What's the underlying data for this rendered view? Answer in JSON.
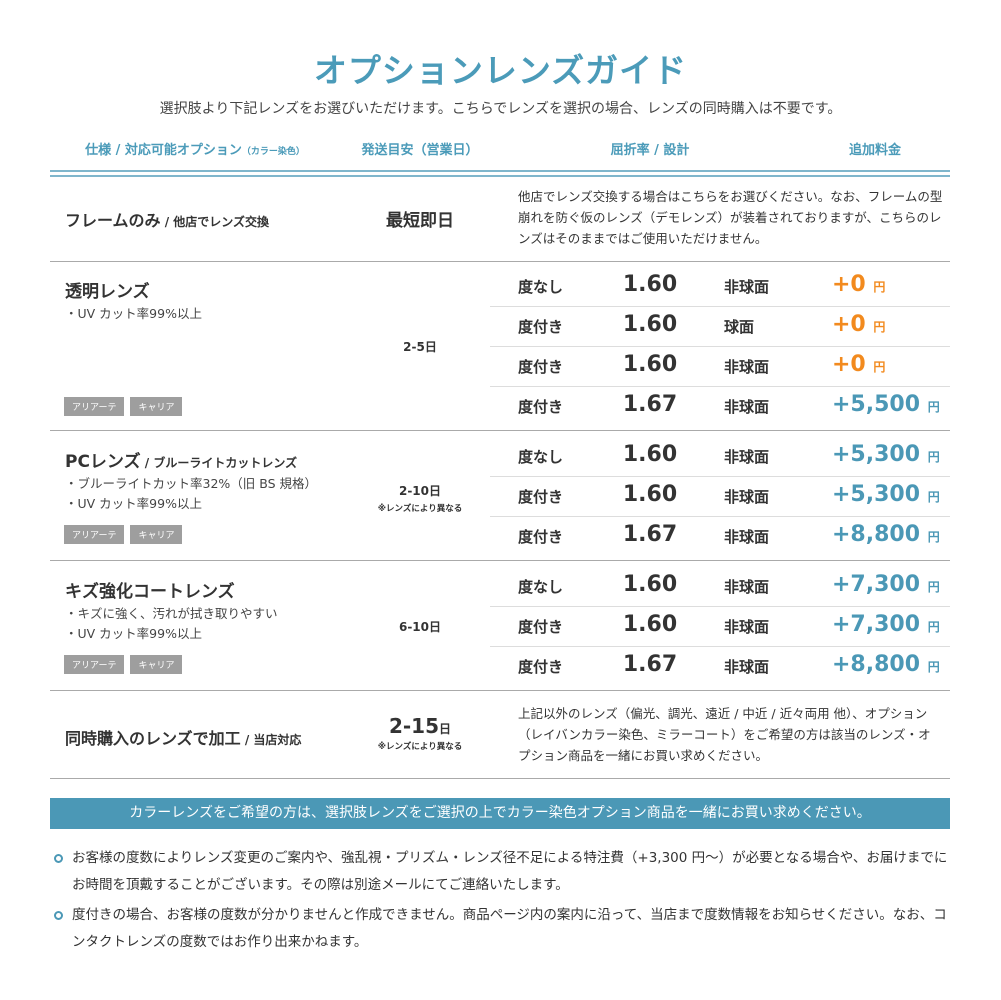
{
  "title": "オプションレンズガイド",
  "subtitle": "選択肢より下記レンズをお選びいただけます。こちらでレンズを選択の場合、レンズの同時購入は不要です。",
  "headers": {
    "spec": "仕様 / 対応可能オプション",
    "spec_small": "（カラー染色）",
    "shipping": "発送目安（営業日）",
    "index": "屈折率 / 設計",
    "price": "追加料金"
  },
  "colors": {
    "accent": "#4b9bb9",
    "orange": "#f28a1e",
    "price_blue": "#4b98b6",
    "tag": "#9e9e9e"
  },
  "frame_only": {
    "title": "フレームのみ",
    "title_sub": " / 他店でレンズ交換",
    "days": "最短即日",
    "desc": "他店でレンズ交換する場合はこちらをお選びください。なお、フレームの型崩れを防ぐ仮のレンズ（デモレンズ）が装着されておりますが、こちらのレンズはそのままではご使用いただけません。"
  },
  "sections": [
    {
      "title": "透明レンズ",
      "title_sub": "",
      "bullets": [
        "・UV カット率99%以上"
      ],
      "tags": [
        "アリアーテ",
        "キャリア"
      ],
      "days": "2-5",
      "days_unit": "日",
      "days_note": "",
      "rows": [
        {
          "label": "度なし",
          "index": "1.60",
          "design": "非球面",
          "price": "+0",
          "unit": "円",
          "color": "orange"
        },
        {
          "label": "度付き",
          "index": "1.60",
          "design": "球面",
          "price": "+0",
          "unit": "円",
          "color": "orange"
        },
        {
          "label": "度付き",
          "index": "1.60",
          "design": "非球面",
          "price": "+0",
          "unit": "円",
          "color": "orange"
        },
        {
          "label": "度付き",
          "index": "1.67",
          "design": "非球面",
          "price": "+5,500",
          "unit": "円",
          "color": "blue"
        }
      ]
    },
    {
      "title": "PCレンズ",
      "title_sub": " / ブルーライトカットレンズ",
      "bullets": [
        "・ブルーライトカット率32%（旧 BS 規格）",
        "・UV カット率99%以上"
      ],
      "tags": [
        "アリアーテ",
        "キャリア"
      ],
      "days": "2-10",
      "days_unit": "日",
      "days_note": "※レンズにより異なる",
      "rows": [
        {
          "label": "度なし",
          "index": "1.60",
          "design": "非球面",
          "price": "+5,300",
          "unit": "円",
          "color": "blue"
        },
        {
          "label": "度付き",
          "index": "1.60",
          "design": "非球面",
          "price": "+5,300",
          "unit": "円",
          "color": "blue"
        },
        {
          "label": "度付き",
          "index": "1.67",
          "design": "非球面",
          "price": "+8,800",
          "unit": "円",
          "color": "blue"
        }
      ]
    },
    {
      "title": "キズ強化コートレンズ",
      "title_sub": "",
      "bullets": [
        "・キズに強く、汚れが拭き取りやすい",
        "・UV カット率99%以上"
      ],
      "tags": [
        "アリアーテ",
        "キャリア"
      ],
      "days": "6-10",
      "days_unit": "日",
      "days_note": "",
      "rows": [
        {
          "label": "度なし",
          "index": "1.60",
          "design": "非球面",
          "price": "+7,300",
          "unit": "円",
          "color": "blue"
        },
        {
          "label": "度付き",
          "index": "1.60",
          "design": "非球面",
          "price": "+7,300",
          "unit": "円",
          "color": "blue"
        },
        {
          "label": "度付き",
          "index": "1.67",
          "design": "非球面",
          "price": "+8,800",
          "unit": "円",
          "color": "blue"
        }
      ]
    }
  ],
  "processing": {
    "title": "同時購入のレンズで加工",
    "title_sub": " / 当店対応",
    "days": "2-15",
    "days_unit": "日",
    "days_note": "※レンズにより異なる",
    "desc": "上記以外のレンズ（偏光、調光、遠近 / 中近 / 近々両用 他）、オプション（レイバンカラー染色、ミラーコート）をご希望の方は該当のレンズ・オプション商品を一緒にお買い求めください。"
  },
  "banner": "カラーレンズをご希望の方は、選択肢レンズをご選択の上でカラー染色オプション商品を一緒にお買い求めください。",
  "notes": [
    "お客様の度数によりレンズ変更のご案内や、強乱視・プリズム・レンズ径不足による特注費（+3,300 円〜）が必要となる場合や、お届けまでにお時間を頂戴することがございます。その際は別途メールにてご連絡いたします。",
    "度付きの場合、お客様の度数が分かりませんと作成できません。商品ページ内の案内に沿って、当店まで度数情報をお知らせください。なお、コンタクトレンズの度数ではお作り出来かねます。"
  ]
}
